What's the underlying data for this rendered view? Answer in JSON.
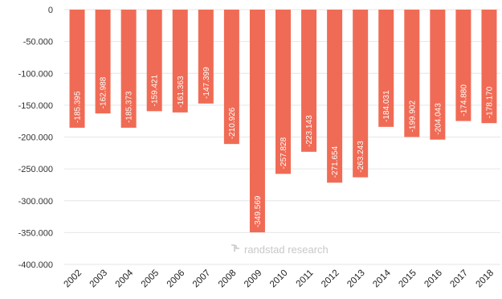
{
  "chart_data": {
    "type": "bar",
    "categories": [
      "2002",
      "2003",
      "2004",
      "2005",
      "2006",
      "2007",
      "2008",
      "2009",
      "2010",
      "2011",
      "2012",
      "2013",
      "2014",
      "2015",
      "2016",
      "2017",
      "2018"
    ],
    "values": [
      -185395,
      -162988,
      -185373,
      -159421,
      -161363,
      -147399,
      -210926,
      -349569,
      -257828,
      -223143,
      -271654,
      -263243,
      -184031,
      -199902,
      -204043,
      -174880,
      -178170
    ],
    "data_labels": [
      "-185.395",
      "-162.988",
      "-185.373",
      "-159.421",
      "-161.363",
      "-147.399",
      "-210.926",
      "-349.569",
      "-257.828",
      "-223.143",
      "-271.654",
      "-263.243",
      "-184.031",
      "-199.902",
      "-204.043",
      "-174.880",
      "-178.170"
    ],
    "y_ticks": [
      0,
      -50000,
      -100000,
      -150000,
      -200000,
      -250000,
      -300000,
      -350000,
      -400000
    ],
    "y_tick_labels": [
      "0",
      "-50.000",
      "-100.000",
      "-150.000",
      "-200.000",
      "-250.000",
      "-300.000",
      "-350.000",
      "-400.000"
    ],
    "ylim": [
      -400000,
      0
    ],
    "grid": true,
    "bar_color": "#f06b55",
    "watermark": "randstad research"
  }
}
